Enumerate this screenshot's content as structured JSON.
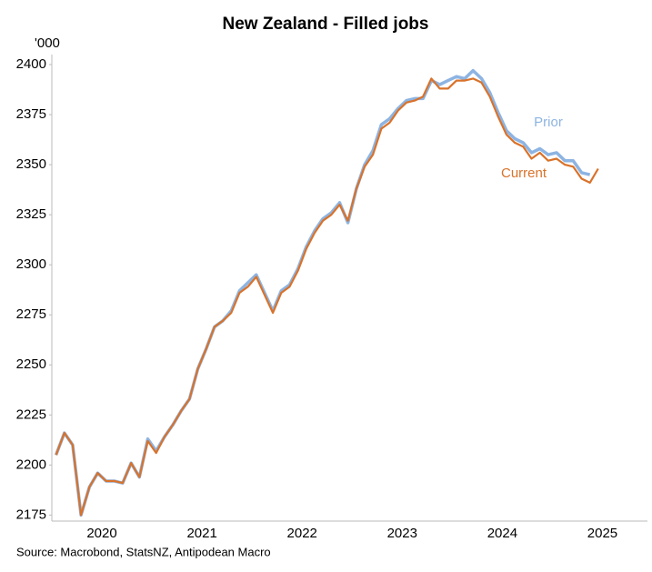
{
  "chart_data": {
    "type": "line",
    "title": "New Zealand - Filled jobs",
    "y_unit": "'000",
    "source": "Source: Macrobond, StatsNZ, Antipodean Macro",
    "x": [
      2020.042,
      2020.125,
      2020.208,
      2020.292,
      2020.375,
      2020.458,
      2020.542,
      2020.625,
      2020.708,
      2020.792,
      2020.875,
      2020.958,
      2021.042,
      2021.125,
      2021.208,
      2021.292,
      2021.375,
      2021.458,
      2021.542,
      2021.625,
      2021.708,
      2021.792,
      2021.875,
      2021.958,
      2022.042,
      2022.125,
      2022.208,
      2022.292,
      2022.375,
      2022.458,
      2022.542,
      2022.625,
      2022.708,
      2022.792,
      2022.875,
      2022.958,
      2023.042,
      2023.125,
      2023.208,
      2023.292,
      2023.375,
      2023.458,
      2023.542,
      2023.625,
      2023.708,
      2023.792,
      2023.875,
      2023.958,
      2024.042,
      2024.125,
      2024.208,
      2024.292,
      2024.375,
      2024.458,
      2024.542,
      2024.625,
      2024.708,
      2024.792,
      2024.875,
      2024.958,
      2025.042,
      2025.125,
      2025.208,
      2025.292,
      2025.375,
      2025.458
    ],
    "series": [
      {
        "name": "Prior",
        "color": "#8db4e2",
        "values": [
          2205,
          2216,
          2210,
          2175,
          2189,
          2196,
          2192,
          2192,
          2191,
          2201,
          2194,
          2213,
          2207,
          2214,
          2220,
          2227,
          2233,
          2248,
          2258,
          2269,
          2272,
          2277,
          2287,
          2291,
          2295,
          2286,
          2277,
          2287,
          2290,
          2298,
          2309,
          2317,
          2323,
          2326,
          2331,
          2321,
          2338,
          2350,
          2357,
          2370,
          2373,
          2378,
          2382,
          2383,
          2383,
          2392,
          2390,
          2392,
          2394,
          2393,
          2397,
          2393,
          2386,
          2376,
          2367,
          2363,
          2361,
          2356,
          2358,
          2355,
          2356,
          2352,
          2352,
          2346,
          2345,
          null
        ]
      },
      {
        "name": "Current",
        "color": "#d9722a",
        "values": [
          2205,
          2216,
          2210,
          2175,
          2189,
          2196,
          2192,
          2192,
          2191,
          2201,
          2194,
          2212,
          2206,
          2214,
          2220,
          2227,
          2233,
          2248,
          2258,
          2269,
          2272,
          2276,
          2286,
          2289,
          2294,
          2285,
          2276,
          2286,
          2289,
          2297,
          2308,
          2316,
          2322,
          2325,
          2330,
          2322,
          2338,
          2349,
          2355,
          2368,
          2371,
          2377,
          2381,
          2382,
          2384,
          2393,
          2388,
          2388,
          2392,
          2392,
          2393,
          2391,
          2384,
          2374,
          2365,
          2361,
          2359,
          2353,
          2356,
          2352,
          2353,
          2350,
          2349,
          2343,
          2341,
          2348
        ]
      }
    ],
    "xlim": [
      2020,
      2025.95
    ],
    "xticks": [
      {
        "value": 2020.5,
        "label": "2020"
      },
      {
        "value": 2021.5,
        "label": "2021"
      },
      {
        "value": 2022.5,
        "label": "2022"
      },
      {
        "value": 2023.5,
        "label": "2023"
      },
      {
        "value": 2024.5,
        "label": "2024"
      },
      {
        "value": 2025.5,
        "label": "2025"
      }
    ],
    "ylim": [
      2172,
      2405
    ],
    "yticks": [
      2175,
      2200,
      2225,
      2250,
      2275,
      2300,
      2325,
      2350,
      2375,
      2400
    ],
    "grid": false
  }
}
